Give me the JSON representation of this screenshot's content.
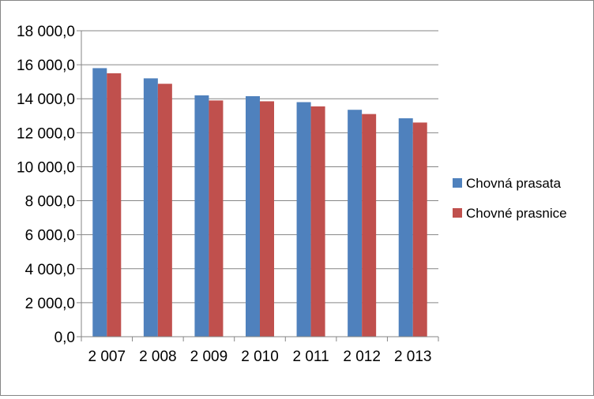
{
  "chart_data": {
    "type": "bar",
    "title": "",
    "xlabel": "",
    "ylabel": "",
    "categories": [
      "2 007",
      "2 008",
      "2 009",
      "2 010",
      "2 011",
      "2 012",
      "2 013"
    ],
    "series": [
      {
        "name": "Chovná prasata",
        "color": "#4F81BD",
        "values": [
          15800,
          15200,
          14200,
          14150,
          13800,
          13350,
          12850
        ]
      },
      {
        "name": "Chovné prasnice",
        "color": "#C0504D",
        "values": [
          15500,
          14880,
          13900,
          13850,
          13550,
          13100,
          12600
        ]
      }
    ],
    "ylim": [
      0,
      18000
    ],
    "yticks": [
      0,
      2000,
      4000,
      6000,
      8000,
      10000,
      12000,
      14000,
      16000,
      18000
    ],
    "ytick_labels": [
      "0,0",
      "2 000,0",
      "4 000,0",
      "6 000,0",
      "8 000,0",
      "10 000,0",
      "12 000,0",
      "14 000,0",
      "16 000,0",
      "18 000,0"
    ],
    "grid": true,
    "legend_position": "right"
  }
}
